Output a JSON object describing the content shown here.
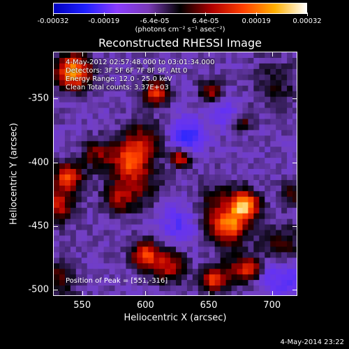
{
  "colorbar": {
    "tick_labels": [
      "-0.00032",
      "-0.00019",
      "-6.4e-05",
      "6.4e-05",
      "0.00019",
      "0.00032"
    ],
    "units": "(photons cm⁻² s⁻¹ asec⁻²)",
    "colors": [
      "#0000c0",
      "#2020ff",
      "#8a3cff",
      "#7a3ab8",
      "#000000",
      "#b00000",
      "#ff4000",
      "#ffb000",
      "#ffffff"
    ]
  },
  "chart_data": {
    "type": "heatmap",
    "title": "Reconstructed RHESSI Image",
    "xlabel": "Heliocentric X (arcsec)",
    "ylabel": "Heliocentric Y (arcsec)",
    "xlim": [
      527,
      720
    ],
    "ylim": [
      -505,
      -313
    ],
    "x_ticks": [
      "550",
      "600",
      "650",
      "700"
    ],
    "y_ticks": [
      "-350",
      "-400",
      "-450",
      "-500"
    ],
    "value_range": [
      -0.00032,
      0.00032
    ],
    "annotations": {
      "date_range": "4-May-2012 02:57:48.000 to 03:01:34.000",
      "detectors": "Detectors: 3F 5F 6F 7F 8F 9F, Att 0",
      "energy": "Energy Range: 12.0 - 25.0 keV",
      "method": "Clean     Total counts: 3.37E+03",
      "peak": "Position of Peak = [551,-316]"
    }
  },
  "footer": {
    "timestamp": "4-May-2014 23:22"
  }
}
